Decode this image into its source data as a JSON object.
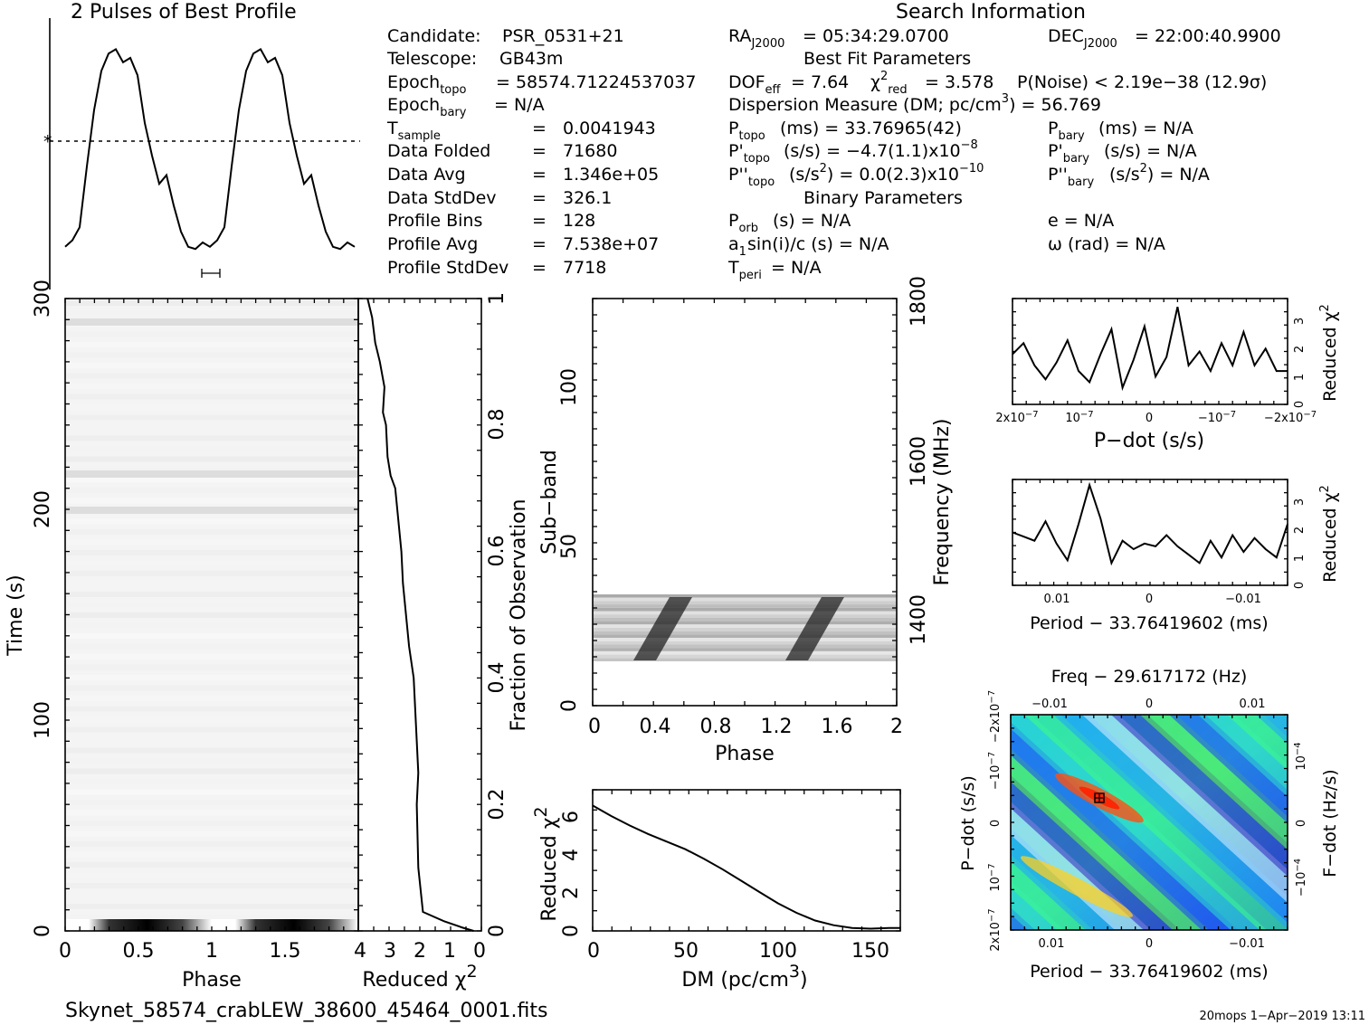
{
  "profile": {
    "title": "2 Pulses of Best Profile"
  },
  "info": {
    "search_header": "Search Information",
    "candidate_label": "Candidate:",
    "candidate": "PSR_0531+21",
    "telescope_label": "Telescope:",
    "telescope": "GB43m",
    "epoch_topo": "= 58574.71224537037",
    "epoch_bary": "= N/A",
    "tsample": "0.0041943",
    "data_folded": "71680",
    "data_avg": "1.346e+05",
    "data_stddev": "326.1",
    "profile_bins": "128",
    "profile_avg": "7.538e+07",
    "profile_stddev": "7718",
    "ra": "= 05:34:29.0700",
    "dec": "= 22:00:40.9900",
    "best_fit_header": "Best Fit Parameters",
    "dof_eff": "= 7.64",
    "chi2_red": "= 3.578",
    "p_noise": "P(Noise) < 2.19e−38   (12.9σ)",
    "dm_line": "Dispersion Measure (DM; pc/cm",
    "dm_value": ") = 56.769",
    "p_topo": "(ms) =  33.76965(42)",
    "p_bary": "(ms) = N/A",
    "pd_topo": "(s/s) = −4.7(1.1)x10",
    "pd_topo_exp": "−8",
    "pd_bary": "(s/s) = N/A",
    "pdd_topo": "(s/s",
    "pdd_topo_val": ") = 0.0(2.3)x10",
    "pdd_topo_exp": "−10",
    "pdd_bary": "(s/s",
    "pdd_bary_val": ") = N/A",
    "binary_header": "Binary Parameters",
    "p_orb": "(s) = N/A",
    "a1sini": "sin(i)/c (s) = N/A",
    "t_peri": "= N/A",
    "ecc": "e = N/A",
    "omega": "ω (rad) = N/A"
  },
  "footer": {
    "filename": "Skynet_58574_crabLEW_38600_45464_0001.fits",
    "stamp": "20mops   1−Apr−2019 13:11"
  },
  "chart_data": [
    {
      "type": "line",
      "name": "profile",
      "title": "2 Pulses of Best Profile",
      "x": [
        0.0,
        0.05,
        0.1,
        0.15,
        0.2,
        0.25,
        0.3,
        0.35,
        0.4,
        0.45,
        0.5,
        0.55,
        0.6,
        0.65,
        0.7,
        0.75,
        0.8,
        0.85,
        0.9,
        0.95,
        1.0,
        1.05,
        1.1,
        1.15,
        1.2,
        1.25,
        1.3,
        1.35,
        1.4,
        1.45,
        1.5,
        1.55,
        1.6,
        1.65,
        1.7,
        1.75,
        1.8,
        1.85,
        1.9,
        1.95,
        2.0
      ],
      "values": [
        0.03,
        0.06,
        0.12,
        0.4,
        0.66,
        0.84,
        0.92,
        0.94,
        0.88,
        0.9,
        0.82,
        0.6,
        0.45,
        0.32,
        0.36,
        0.22,
        0.1,
        0.03,
        0.02,
        0.05,
        0.03,
        0.06,
        0.12,
        0.4,
        0.66,
        0.84,
        0.92,
        0.94,
        0.88,
        0.9,
        0.82,
        0.6,
        0.45,
        0.32,
        0.36,
        0.22,
        0.1,
        0.03,
        0.02,
        0.05,
        0.03
      ]
    },
    {
      "type": "line",
      "name": "time-chi2",
      "xlabel": "Reduced χ²",
      "ylabel": "Fraction of Observation",
      "xticks": [
        "4",
        "3",
        "2",
        "1",
        "0"
      ],
      "yticks": [
        "0",
        "0.2",
        "0.4",
        "0.6",
        "0.8",
        "1"
      ],
      "xlim": [
        4,
        0
      ],
      "ylim": [
        0,
        1
      ],
      "x": [
        0.25,
        0.6,
        1.2,
        1.9,
        2.05,
        2.1,
        2.05,
        2.1,
        2.2,
        2.35,
        2.45,
        2.55,
        2.6,
        2.7,
        2.8,
        2.95,
        3.05,
        3.1,
        3.2,
        3.15,
        3.3,
        3.45,
        3.5,
        3.55,
        3.6,
        3.7
      ],
      "values": [
        0.0,
        0.005,
        0.015,
        0.03,
        0.1,
        0.2,
        0.25,
        0.3,
        0.4,
        0.45,
        0.5,
        0.55,
        0.6,
        0.65,
        0.7,
        0.72,
        0.75,
        0.8,
        0.82,
        0.86,
        0.9,
        0.93,
        0.95,
        0.97,
        0.98,
        1.0
      ]
    },
    {
      "type": "heatmap",
      "name": "time-phase",
      "xlabel": "Phase",
      "ylabel": "Time (s)",
      "xticks": [
        "0",
        "0.5",
        "1",
        "1.5"
      ],
      "yticks": [
        "0",
        "100",
        "200",
        "300"
      ],
      "xlim": [
        0,
        2
      ],
      "ylim": [
        0,
        300
      ]
    },
    {
      "type": "heatmap",
      "name": "subband-phase",
      "xlabel": "Phase",
      "ylabel": "Sub−band",
      "y2label": "Frequency (MHz)",
      "xticks": [
        "0",
        "0.4",
        "0.8",
        "1.2",
        "1.6",
        "2"
      ],
      "yticks": [
        "0",
        "50",
        "100"
      ],
      "y2ticks": [
        "1400",
        "1600",
        "1800"
      ],
      "xlim": [
        0,
        2
      ],
      "ylim": [
        0,
        128
      ]
    },
    {
      "type": "line",
      "name": "dm-chi2",
      "xlabel": "DM (pc/cm³)",
      "ylabel": "Reduced χ²",
      "xticks": [
        "0",
        "50",
        "100",
        "150"
      ],
      "yticks": [
        "0",
        "2",
        "4",
        "6"
      ],
      "xlim": [
        0,
        166
      ],
      "ylim": [
        0,
        7
      ],
      "x": [
        0,
        10,
        20,
        30,
        40,
        50,
        60,
        70,
        80,
        90,
        100,
        110,
        120,
        130,
        140,
        150,
        160,
        166
      ],
      "values": [
        6.6,
        6.05,
        5.55,
        5.1,
        4.7,
        4.3,
        3.8,
        3.25,
        2.65,
        2.05,
        1.45,
        0.95,
        0.55,
        0.3,
        0.15,
        0.12,
        0.15,
        0.15
      ]
    },
    {
      "type": "line",
      "name": "pdot-chi2",
      "xlabel": "P−dot (s/s)",
      "ylabel": "Reduced χ²",
      "xticks": [
        "2x10⁻⁷",
        "10⁻⁷",
        "0",
        "−10⁻⁷",
        "−2x10⁻⁷"
      ],
      "yticks": [
        "0",
        "1",
        "2",
        "3"
      ],
      "ylim": [
        0,
        3.8
      ],
      "x": [
        0,
        0.04,
        0.08,
        0.12,
        0.16,
        0.2,
        0.24,
        0.28,
        0.32,
        0.36,
        0.4,
        0.44,
        0.48,
        0.52,
        0.56,
        0.6,
        0.64,
        0.68,
        0.72,
        0.76,
        0.8,
        0.84,
        0.88,
        0.92,
        0.96,
        1.0
      ],
      "values": [
        1.8,
        2.2,
        1.4,
        0.9,
        1.5,
        2.3,
        1.2,
        0.8,
        1.8,
        2.7,
        0.6,
        1.6,
        2.8,
        1.0,
        1.7,
        3.5,
        1.4,
        1.9,
        1.2,
        2.2,
        1.4,
        2.6,
        1.4,
        2.0,
        1.2,
        1.2
      ]
    },
    {
      "type": "line",
      "name": "period-chi2",
      "xlabel": "Period − 33.76419602 (ms)",
      "ylabel": "Reduced χ²",
      "xticks": [
        "0.01",
        "0",
        "−0.01"
      ],
      "yticks": [
        "0",
        "1",
        "2",
        "3"
      ],
      "ylim": [
        0,
        3.8
      ],
      "x": [
        0,
        0.04,
        0.08,
        0.12,
        0.16,
        0.2,
        0.24,
        0.28,
        0.32,
        0.36,
        0.4,
        0.44,
        0.48,
        0.52,
        0.56,
        0.6,
        0.64,
        0.68,
        0.72,
        0.76,
        0.8,
        0.84,
        0.88,
        0.92,
        0.96,
        1.0
      ],
      "values": [
        1.9,
        1.75,
        1.6,
        2.3,
        1.5,
        0.9,
        2.2,
        3.6,
        2.4,
        0.8,
        1.6,
        1.3,
        1.5,
        1.4,
        1.8,
        1.4,
        1.1,
        0.8,
        1.6,
        1.0,
        1.8,
        1.2,
        1.7,
        1.3,
        1.0,
        2.2
      ]
    },
    {
      "type": "heatmap",
      "name": "period-pdot",
      "title": "Freq − 29.617172 (Hz)",
      "xlabel": "Period − 33.76419602 (ms)",
      "ylabel": "P−dot (s/s)",
      "y2label": "F−dot (Hz/s)",
      "xticks": [
        "0.01",
        "0",
        "−0.01"
      ],
      "x2ticks": [
        "−0.01",
        "0",
        "0.01"
      ],
      "yticks": [
        "2x10⁻⁷",
        "10⁻⁷",
        "0",
        "−10⁻⁷",
        "−2x10⁻⁷"
      ],
      "y2ticks": [
        "−10⁻⁴",
        "0",
        "10⁻⁴"
      ]
    }
  ]
}
